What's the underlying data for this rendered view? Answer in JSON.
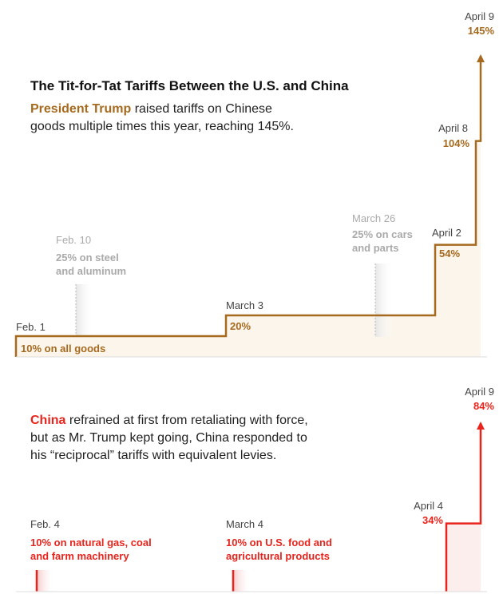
{
  "colors": {
    "us": "#a66a1f",
    "china": "#e8241c",
    "us_fill": "#fbf5ec",
    "china_fill": "#fdeeee",
    "gray": "#aaaaaa"
  },
  "chart_data": [
    {
      "type": "line",
      "subtype": "step",
      "title": "The Tit-for-Tat Tariffs Between the U.S. and China",
      "subtitle": {
        "highlight": "President Trump",
        "text_line1": " raised tariffs on Chinese",
        "text_line2": "goods multiple times this year, reaching 145%."
      },
      "series": [
        {
          "name": "President Trump",
          "points": [
            {
              "date": "Feb. 1",
              "value": 10,
              "label": "10% on all goods"
            },
            {
              "date": "March 3",
              "value": 20,
              "label": "20%"
            },
            {
              "date": "April 2",
              "value": 54,
              "label": "54%"
            },
            {
              "date": "April 8",
              "value": 104,
              "label": "104%"
            },
            {
              "date": "April 9",
              "value": 145,
              "label": "145%"
            }
          ]
        }
      ],
      "annotations": [
        {
          "date": "Feb. 10",
          "note_line1": "25% on steel",
          "note_line2": "and aluminum"
        },
        {
          "date": "March 26",
          "note_line1": "25% on cars",
          "note_line2": "and parts"
        }
      ]
    },
    {
      "type": "line",
      "subtype": "step",
      "subtitle": {
        "highlight": "China",
        "text_line1": " refrained at first from retaliating with force,",
        "text_line2": "but as Mr. Trump kept going, China responded to",
        "text_line3": "his “reciprocal” tariffs with equivalent levies."
      },
      "series": [
        {
          "name": "China",
          "events": [
            {
              "date": "Feb. 4",
              "label_line1": "10% on natural gas, coal",
              "label_line2": "and farm machinery"
            },
            {
              "date": "March 4",
              "label_line1": "10% on U.S. food and",
              "label_line2": "agricultural products"
            },
            {
              "date": "April 4",
              "value": 34,
              "label": "34%"
            },
            {
              "date": "April 9",
              "value": 84,
              "label": "84%"
            }
          ]
        }
      ]
    }
  ]
}
